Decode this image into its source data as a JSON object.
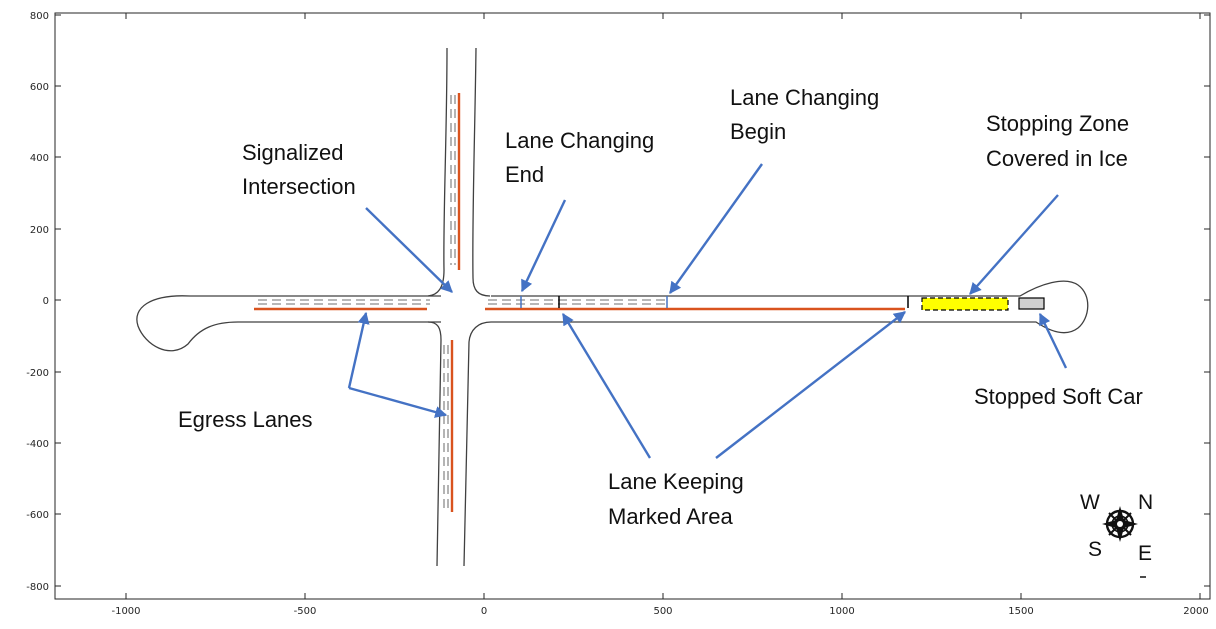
{
  "axes": {
    "x_ticks": [
      "-1000",
      "-500",
      "0",
      "500",
      "1000",
      "1500",
      "2000"
    ],
    "y_ticks": [
      "800",
      "600",
      "400",
      "200",
      "0",
      "-200",
      "-400",
      "-600",
      "-800"
    ],
    "xlim": [
      -1000,
      2000
    ],
    "ylim": [
      -800,
      800
    ]
  },
  "labels": {
    "signalized_line1": "Signalized",
    "signalized_line2": "Intersection",
    "lc_end_line1": "Lane Changing",
    "lc_end_line2": "End",
    "lc_begin_line1": "Lane Changing",
    "lc_begin_line2": "Begin",
    "stopping_line1": "Stopping Zone",
    "stopping_line2": "Covered in Ice",
    "egress": "Egress Lanes",
    "lane_keeping_line1": "Lane Keeping",
    "lane_keeping_line2": "Marked Area",
    "stopped_car": "Stopped Soft Car"
  },
  "compass": {
    "w": "W",
    "n": "N",
    "s": "S",
    "e": "E"
  },
  "colors": {
    "road": "#404040",
    "lane_marking": "#d9531e",
    "dashes": "#8c8c8c",
    "arrow": "#4472c4",
    "ice_zone": "#ffff00",
    "stopped_car": "#d0d0d0"
  }
}
